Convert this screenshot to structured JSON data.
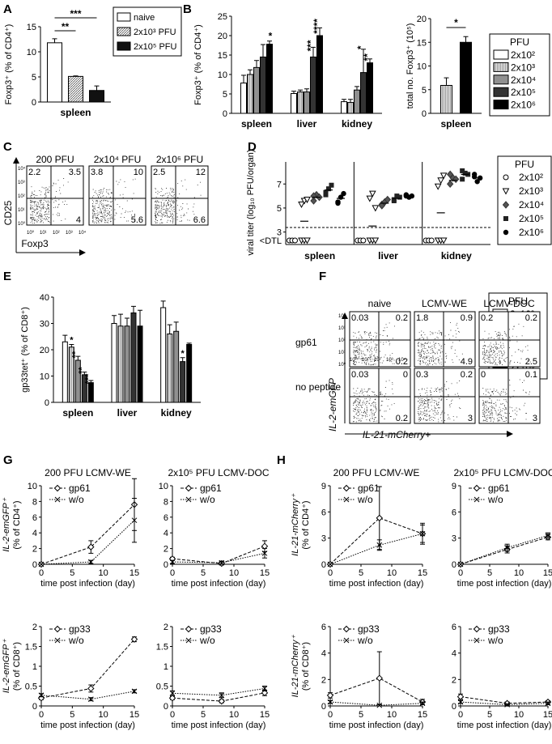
{
  "panels": [
    {
      "letter": "A"
    },
    {
      "letter": "B"
    },
    {
      "letter": "C"
    },
    {
      "letter": "D"
    },
    {
      "letter": "E"
    },
    {
      "letter": "F"
    },
    {
      "letter": "G"
    },
    {
      "letter": "H"
    }
  ],
  "legends": {
    "a": [
      "naive",
      "2x10³ PFU",
      "2x10⁵ PFU"
    ],
    "pfu_title": "PFU",
    "pfu5": [
      "2x10²",
      "2x10³",
      "2x10⁴",
      "2x10⁵",
      "2x10⁶"
    ]
  },
  "chart_data": [
    {
      "id": "A",
      "type": "bar",
      "ylabel": "Foxp3⁺ (% of CD4⁺)",
      "ylim": [
        0,
        15
      ],
      "yticks": [
        0,
        5,
        10,
        15
      ],
      "categories": [
        "spleen"
      ],
      "series": [
        {
          "name": "naive",
          "values": [
            11.8
          ],
          "err": [
            0.8
          ]
        },
        {
          "name": "2x10³ PFU",
          "values": [
            5.1
          ],
          "err": [
            0.1
          ]
        },
        {
          "name": "2x10⁵ PFU",
          "values": [
            2.3
          ],
          "err": [
            0.9
          ]
        }
      ],
      "sig": [
        "***",
        "**"
      ]
    },
    {
      "id": "B1",
      "type": "bar",
      "ylabel": "Foxp3⁺ (% of CD4⁺)",
      "ylim": [
        0,
        25
      ],
      "yticks": [
        0,
        5,
        10,
        15,
        20,
        25
      ],
      "categories": [
        "spleen",
        "liver",
        "kidney"
      ],
      "series": [
        {
          "name": "2x10²",
          "values": [
            7.8,
            5.1,
            3.0
          ],
          "err": [
            2.0,
            0.6,
            0.6
          ]
        },
        {
          "name": "2x10³",
          "values": [
            10.0,
            5.5,
            2.8
          ],
          "err": [
            1.2,
            0.5,
            0.8
          ]
        },
        {
          "name": "2x10⁴",
          "values": [
            11.8,
            5.5,
            6.0
          ],
          "err": [
            1.8,
            0.8,
            0.9
          ]
        },
        {
          "name": "2x10⁵",
          "values": [
            14.5,
            14.5,
            10.5
          ],
          "err": [
            3.2,
            2.5,
            6.0
          ]
        },
        {
          "name": "2x10⁶",
          "values": [
            17.8,
            20.0,
            13.0
          ],
          "err": [
            0.8,
            2.0,
            1.0
          ]
        }
      ],
      "sig": [
        [
          "*"
        ],
        [
          "***",
          "****"
        ],
        [
          "*",
          "**"
        ]
      ]
    },
    {
      "id": "B2",
      "type": "bar",
      "ylabel": "total no. Foxp3⁺ (10⁵)",
      "ylim": [
        0,
        20
      ],
      "yticks": [
        0,
        5,
        10,
        15,
        20
      ],
      "categories": [
        "spleen"
      ],
      "series": [
        {
          "name": "2x10³",
          "values": [
            5.9
          ],
          "err": [
            1.6
          ]
        },
        {
          "name": "2x10⁵",
          "values": [
            15.0
          ],
          "err": [
            1.2
          ]
        }
      ],
      "sig": [
        "*"
      ]
    },
    {
      "id": "C",
      "type": "scatter",
      "xlabel": "Foxp3",
      "ylabel": "CD25",
      "plots": [
        {
          "title": "200 PFU",
          "ul": "2.2",
          "ur": "3.5",
          "lr": "4"
        },
        {
          "title": "2x10⁴ PFU",
          "ul": "3.8",
          "ur": "10",
          "lr": "5.6"
        },
        {
          "title": "2x10⁶ PFU",
          "ul": "2.5",
          "ur": "12",
          "lr": "6.6"
        }
      ],
      "ticks": [
        "10⁰",
        "10¹",
        "10²",
        "10³",
        "10⁴"
      ]
    },
    {
      "id": "D",
      "type": "scatter",
      "ylabel": "viral titer (log₁₀ PFU/organ)",
      "yticks": [
        3,
        5,
        7
      ],
      "dtl": "<DTL",
      "categories": [
        "spleen",
        "liver",
        "kidney"
      ],
      "series_names": [
        "2x10²",
        "2x10³",
        "2x10⁴",
        "2x10⁵",
        "2x10⁶"
      ],
      "groups": [
        [
          [
            2.3,
            2.3,
            2.3
          ],
          [
            5.3,
            5.6,
            5.7,
            2.3,
            2.3,
            2.3
          ],
          [
            5.6,
            6.1,
            5.9,
            6.0
          ],
          [
            6.3,
            6.6,
            6.9,
            6.1
          ],
          [
            5.4,
            5.9,
            6.2,
            5.5
          ]
        ],
        [
          [
            2.3,
            2.3,
            2.3
          ],
          [
            5.8,
            6.2,
            5.0,
            2.3,
            2.3,
            2.3
          ],
          [
            5.3,
            5.5,
            5.7,
            5.2
          ],
          [
            5.6,
            6.0,
            5.9,
            5.7
          ],
          [
            6.0,
            5.9,
            6.0,
            6.1
          ]
        ],
        [
          [
            2.3,
            2.3,
            2.3
          ],
          [
            6.8,
            7.3,
            7.7,
            2.3,
            2.3,
            2.3
          ],
          [
            7.0,
            7.5,
            7.4,
            7.8
          ],
          [
            7.4,
            7.9,
            7.8,
            8.1
          ],
          [
            7.6,
            7.2,
            7.5,
            7.8
          ]
        ]
      ],
      "means": [
        [
          null,
          3.9,
          5.9,
          6.5,
          5.8
        ],
        [
          null,
          3.5,
          5.4,
          5.8,
          6.0
        ],
        [
          null,
          4.6,
          7.3,
          7.8,
          7.5
        ]
      ]
    },
    {
      "id": "E",
      "type": "bar",
      "ylabel": "gp33tet⁺ (% of CD8⁺)",
      "ylim": [
        0,
        40
      ],
      "yticks": [
        0,
        10,
        20,
        30,
        40
      ],
      "categories": [
        "spleen",
        "liver",
        "kidney"
      ],
      "series": [
        {
          "name": "2x10²",
          "values": [
            23,
            30,
            36
          ],
          "err": [
            2.5,
            3,
            2.5
          ]
        },
        {
          "name": "2x10³",
          "values": [
            21,
            29,
            26
          ],
          "err": [
            1.0,
            4.5,
            3.5
          ]
        },
        {
          "name": "2x10⁴",
          "values": [
            16,
            29,
            27
          ],
          "err": [
            1.5,
            3,
            3.5
          ]
        },
        {
          "name": "2x10⁵",
          "values": [
            10.5,
            34,
            15.5
          ],
          "err": [
            1.0,
            2.5,
            1.5
          ]
        },
        {
          "name": "2x10⁶",
          "values": [
            7.5,
            29,
            22
          ],
          "err": [
            0.8,
            6,
            0.5
          ]
        }
      ],
      "sig": [
        [
          "*",
          "**",
          "**",
          "***"
        ],
        [],
        [
          "*"
        ]
      ]
    },
    {
      "id": "F",
      "type": "scatter",
      "xlabel": "IL-21-mCherry+",
      "ylabel": "IL-2-emGFP",
      "columns": [
        "naive",
        "LCMV-WE",
        "LCMV-DOC"
      ],
      "rows": [
        "gp61",
        "no peptide"
      ],
      "quadrants": [
        [
          {
            "ul": "0.03",
            "ur": "0.2",
            "lr": "0.2"
          },
          {
            "ul": "1.8",
            "ur": "0.9",
            "lr": "4.9"
          },
          {
            "ul": "0.2",
            "ur": "0.2",
            "lr": "2.5"
          }
        ],
        [
          {
            "ul": "0.03",
            "ur": "0",
            "lr": "0.2"
          },
          {
            "ul": "0.3",
            "ur": "0.2",
            "lr": "3"
          },
          {
            "ul": "0",
            "ur": "0.1",
            "lr": "3"
          }
        ]
      ],
      "ticks": [
        "10⁰",
        "10¹",
        "10²",
        "10³",
        "10⁴"
      ]
    },
    {
      "id": "G",
      "type": "line",
      "xlabel": "time post infection (day)",
      "xticks": [
        0,
        5,
        10,
        15
      ],
      "subplots": [
        {
          "title": "200 PFU LCMV-WE",
          "ylabel": "IL-2-emGFP⁺ (% of CD4⁺)",
          "ylim": [
            0,
            10
          ],
          "yticks": [
            0,
            2,
            4,
            6,
            8,
            10
          ],
          "series": [
            {
              "name": "gp61",
              "x": [
                0,
                8,
                15
              ],
              "y": [
                0,
                2.2,
                7.6
              ],
              "err": [
                0,
                0.8,
                3.3
              ]
            },
            {
              "name": "w/o",
              "x": [
                0,
                8,
                15
              ],
              "y": [
                0,
                0.3,
                5.6
              ],
              "err": [
                0,
                0.2,
                2.8
              ]
            }
          ]
        },
        {
          "title": "2x10⁵ PFU LCMV-DOC",
          "ylim": [
            0,
            10
          ],
          "yticks": [
            0,
            2,
            4,
            6,
            8,
            10
          ],
          "series": [
            {
              "name": "gp61",
              "x": [
                0,
                8,
                15
              ],
              "y": [
                0.7,
                0.1,
                2.3
              ],
              "err": [
                0.2,
                0.2,
                0.7
              ]
            },
            {
              "name": "w/o",
              "x": [
                0,
                8,
                15
              ],
              "y": [
                0.3,
                0.2,
                1.4
              ],
              "err": [
                0.2,
                0.2,
                0.6
              ]
            }
          ]
        },
        {
          "ylabel": "IL-2-emGFP⁺ (% of CD8⁺)",
          "ylim": [
            0,
            2.0
          ],
          "yticks": [
            0,
            0.5,
            1.0,
            1.5,
            2.0
          ],
          "series": [
            {
              "name": "gp33",
              "x": [
                0,
                8,
                15
              ],
              "y": [
                0.2,
                0.44,
                1.68
              ],
              "err": [
                0.04,
                0.09,
                0.06
              ]
            },
            {
              "name": "w/o",
              "x": [
                0,
                8,
                15
              ],
              "y": [
                0.27,
                0.17,
                0.37
              ],
              "err": [
                0.04,
                0.04,
                0.04
              ]
            }
          ]
        },
        {
          "ylim": [
            0,
            2.0
          ],
          "yticks": [
            0,
            0.5,
            1.0,
            1.5,
            2.0
          ],
          "series": [
            {
              "name": "gp33",
              "x": [
                0,
                8,
                15
              ],
              "y": [
                0.2,
                0.12,
                0.33
              ],
              "err": [
                0.04,
                0.04,
                0.07
              ]
            },
            {
              "name": "w/o",
              "x": [
                0,
                8,
                15
              ],
              "y": [
                0.32,
                0.27,
                0.44
              ],
              "err": [
                0.06,
                0.06,
                0.06
              ]
            }
          ]
        }
      ]
    },
    {
      "id": "H",
      "type": "line",
      "xlabel": "time post infection (day)",
      "xticks": [
        0,
        5,
        10,
        15
      ],
      "subplots": [
        {
          "title": "200 PFU LCMV-WE",
          "ylabel": "IL-21-mCherry⁺ (% of CD4⁺)",
          "ylim": [
            0,
            9
          ],
          "yticks": [
            0,
            3,
            6,
            9
          ],
          "series": [
            {
              "name": "gp61",
              "x": [
                0,
                8,
                15
              ],
              "y": [
                0,
                5.3,
                3.5
              ],
              "err": [
                0,
                3.6,
                1.2
              ]
            },
            {
              "name": "w/o",
              "x": [
                0,
                8,
                15
              ],
              "y": [
                0,
                2.2,
                3.5
              ],
              "err": [
                0,
                0.6,
                1.0
              ]
            }
          ]
        },
        {
          "title": "2x10⁵ PFU LCMV-DOC",
          "ylim": [
            0,
            9
          ],
          "yticks": [
            0,
            3,
            6,
            9
          ],
          "series": [
            {
              "name": "gp61",
              "x": [
                0,
                8,
                15
              ],
              "y": [
                0,
                1.7,
                3.1
              ],
              "err": [
                0,
                0.4,
                0.3
              ]
            },
            {
              "name": "w/o",
              "x": [
                0,
                8,
                15
              ],
              "y": [
                0,
                1.9,
                3.3
              ],
              "err": [
                0,
                0.4,
                0.3
              ]
            }
          ]
        },
        {
          "ylabel": "IL-21-mCherry⁺ (% of CD8⁺)",
          "ylim": [
            0,
            6
          ],
          "yticks": [
            0,
            2,
            4,
            6
          ],
          "series": [
            {
              "name": "gp33",
              "x": [
                0,
                8,
                15
              ],
              "y": [
                0.8,
                2.1,
                0.3
              ],
              "err": [
                0.2,
                2.0,
                0.2
              ]
            },
            {
              "name": "w/o",
              "x": [
                0,
                8,
                15
              ],
              "y": [
                0.3,
                0.05,
                0.2
              ],
              "err": [
                0.1,
                0.05,
                0.1
              ]
            }
          ]
        },
        {
          "ylim": [
            0,
            6
          ],
          "yticks": [
            0,
            2,
            4,
            6
          ],
          "series": [
            {
              "name": "gp33",
              "x": [
                0,
                8,
                15
              ],
              "y": [
                0.7,
                0.2,
                0.3
              ],
              "err": [
                0.2,
                0.1,
                0.1
              ]
            },
            {
              "name": "w/o",
              "x": [
                0,
                8,
                15
              ],
              "y": [
                0.3,
                0.1,
                0.2
              ],
              "err": [
                0.1,
                0.05,
                0.1
              ]
            }
          ]
        }
      ]
    }
  ]
}
